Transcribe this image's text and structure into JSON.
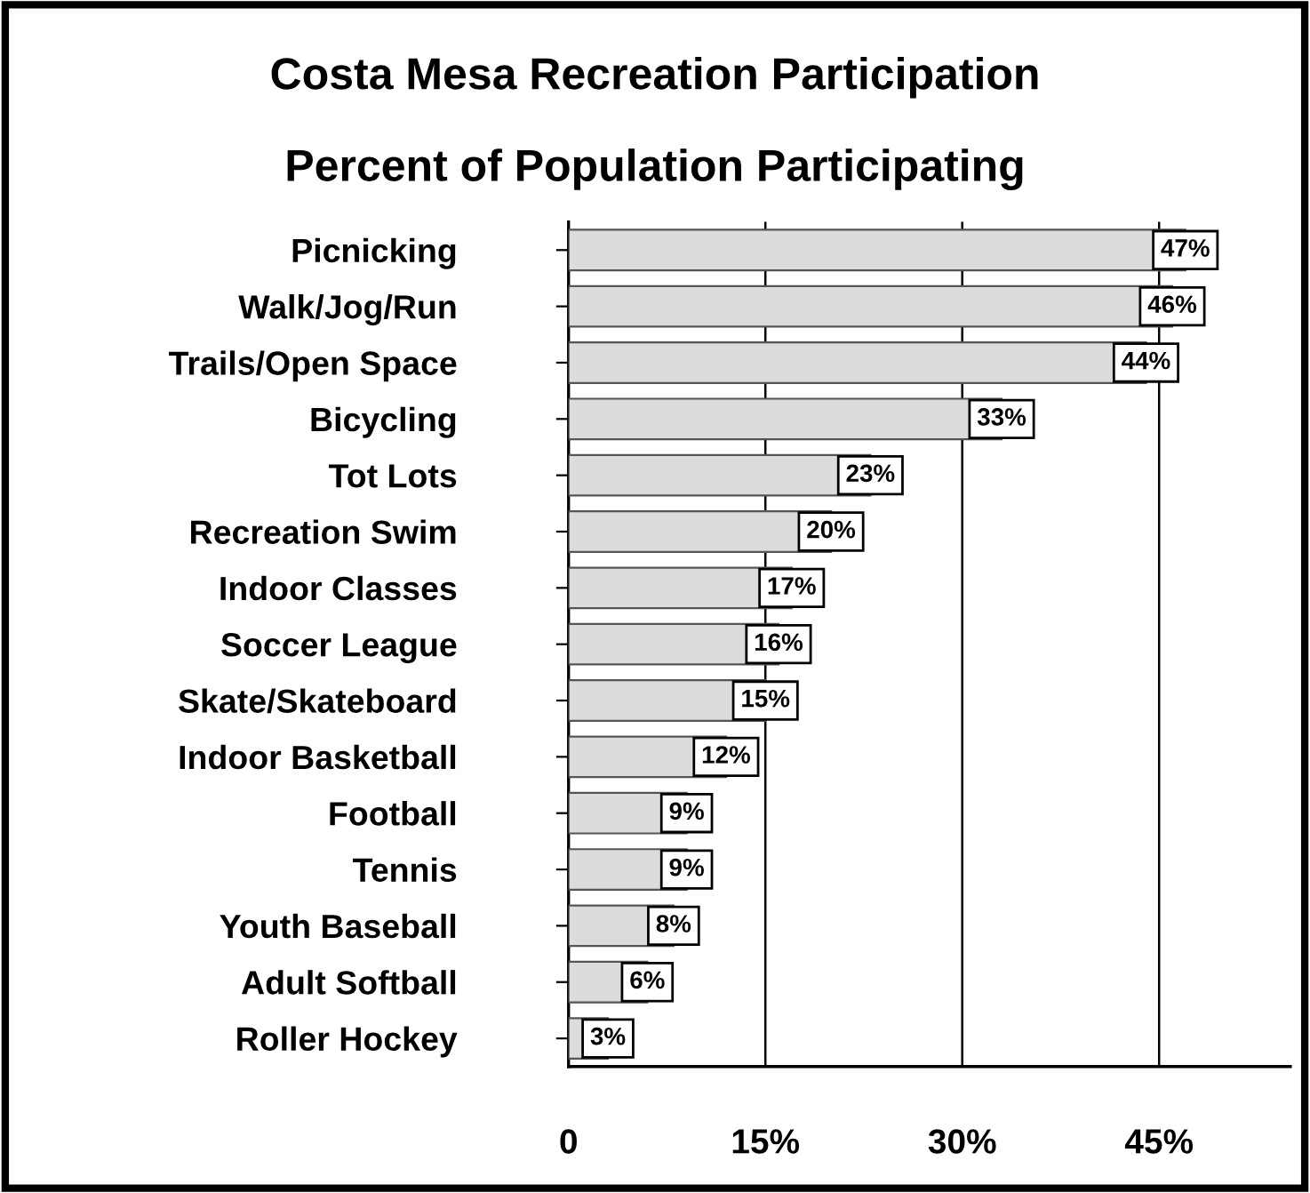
{
  "chart_data": {
    "type": "bar",
    "orientation": "horizontal",
    "title": "Costa Mesa Recreation Participation",
    "subtitle": "Percent of Population Participating",
    "categories": [
      "Picnicking",
      "Walk/Jog/Run",
      "Trails/Open Space",
      "Bicycling",
      "Tot Lots",
      "Recreation Swim",
      "Indoor Classes",
      "Soccer League",
      "Skate/Skateboard",
      "Indoor Basketball",
      "Football",
      "Tennis",
      "Youth Baseball",
      "Adult Softball",
      "Roller Hockey"
    ],
    "values": [
      47,
      46,
      44,
      33,
      23,
      20,
      17,
      16,
      15,
      12,
      9,
      9,
      8,
      6,
      3
    ],
    "value_labels": [
      "47%",
      "46%",
      "44%",
      "33%",
      "23%",
      "20%",
      "17%",
      "16%",
      "15%",
      "12%",
      "9%",
      "9%",
      "8%",
      "6%",
      "3%"
    ],
    "color": "#dcdcdc",
    "xlim": [
      0,
      55
    ],
    "xticks": [
      0,
      {
        "value": 15,
        "label": "15%"
      },
      {
        "value": 30,
        "label": "30%"
      },
      {
        "value": 45,
        "label": "45%"
      }
    ],
    "grid": "x",
    "legend": false
  }
}
